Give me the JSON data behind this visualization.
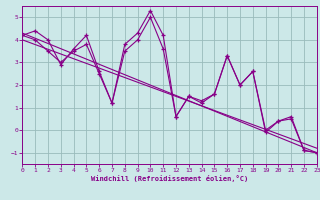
{
  "xlabel": "Windchill (Refroidissement éolien,°C)",
  "bg_color": "#cce8e8",
  "line_color": "#880088",
  "grid_color": "#99bbbb",
  "xlim": [
    0,
    23
  ],
  "ylim": [
    -1.5,
    5.5
  ],
  "xticks": [
    0,
    1,
    2,
    3,
    4,
    5,
    6,
    7,
    8,
    9,
    10,
    11,
    12,
    13,
    14,
    15,
    16,
    17,
    18,
    19,
    20,
    21,
    22,
    23
  ],
  "yticks": [
    -1,
    0,
    1,
    2,
    3,
    4,
    5
  ],
  "series1_x": [
    0,
    1,
    2,
    3,
    4,
    5,
    6,
    7,
    8,
    9,
    10,
    11,
    12,
    13,
    14,
    15,
    16,
    17,
    18,
    19,
    20,
    21,
    22,
    23
  ],
  "series1_y": [
    4.2,
    4.4,
    4.0,
    2.9,
    3.6,
    4.2,
    2.6,
    1.2,
    3.8,
    4.3,
    5.3,
    4.2,
    0.6,
    1.5,
    1.2,
    1.6,
    3.3,
    2.0,
    2.6,
    -0.1,
    0.4,
    0.5,
    -0.9,
    -1.0
  ],
  "series2_x": [
    0,
    1,
    2,
    3,
    4,
    5,
    6,
    7,
    8,
    9,
    10,
    11,
    12,
    13,
    14,
    15,
    16,
    17,
    18,
    19,
    20,
    21,
    22,
    23
  ],
  "series2_y": [
    4.2,
    4.0,
    3.5,
    3.0,
    3.5,
    3.8,
    2.5,
    1.2,
    3.5,
    4.0,
    5.0,
    3.6,
    0.6,
    1.5,
    1.3,
    1.6,
    3.3,
    2.0,
    2.6,
    0.0,
    0.4,
    0.6,
    -0.9,
    -1.0
  ],
  "trend1_x": [
    0,
    23
  ],
  "trend1_y": [
    4.3,
    -1.0
  ],
  "trend2_x": [
    0,
    23
  ],
  "trend2_y": [
    4.0,
    -0.8
  ]
}
